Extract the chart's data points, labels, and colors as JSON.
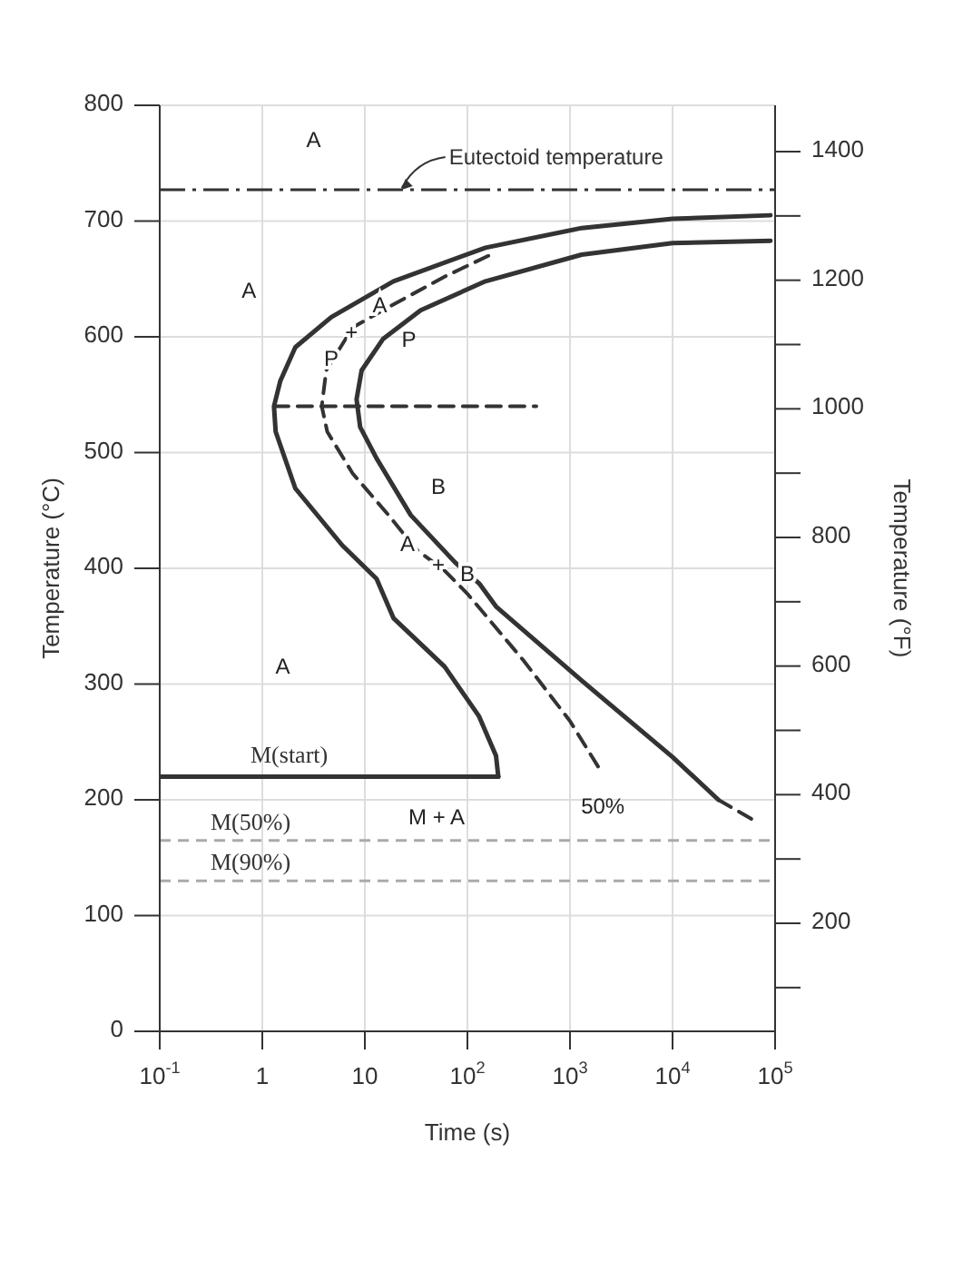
{
  "chart_data": {
    "type": "line",
    "xlabel": "Time (s)",
    "ylabel": "Temperature (°C)",
    "y2label": "Temperature (°F)",
    "log": "x",
    "grid": true,
    "marker": "none",
    "xlim": [
      0.1,
      100000
    ],
    "xticks": [
      {
        "value": 0.1,
        "label": "10$^{-1}$"
      },
      1,
      10,
      {
        "value": 100,
        "label": "10$^{2}$"
      },
      {
        "value": 1000,
        "label": "10$^{3}$"
      },
      {
        "value": 10000,
        "label": "10$^{4}$"
      },
      {
        "value": 100000,
        "label": "10$^{5}$"
      }
    ],
    "ylim": [
      0,
      800
    ],
    "yticks": [
      0,
      100,
      200,
      300,
      400,
      500,
      600,
      700,
      800
    ],
    "y2lim": [
      32,
      1472
    ],
    "y2ticks": [
      {
        "value": 100,
        "label": null
      },
      200,
      {
        "value": 300,
        "label": null
      },
      400,
      {
        "value": 500,
        "label": null
      },
      600,
      {
        "value": 700,
        "label": null
      },
      800,
      {
        "value": 900,
        "label": null
      },
      1000,
      {
        "value": 1100,
        "label": null
      },
      1200,
      {
        "value": 1300,
        "label": null
      },
      1400
    ],
    "series": [
      {
        "color": "#333333",
        "line_style": "solid",
        "x": [
          90000,
          10000,
          1300,
          150,
          19,
          4.7,
          2.1,
          1.5,
          1.3,
          1.35,
          2.1,
          6,
          13,
          19,
          60,
          130,
          190,
          200
        ],
        "values": [
          705,
          702,
          694,
          677,
          648,
          617,
          591,
          562,
          540,
          518,
          469,
          420,
          391,
          357,
          315,
          272,
          238,
          220
        ]
      },
      {
        "color": "#333333",
        "line_style": "solid",
        "x": [
          90000,
          10000,
          1300,
          150,
          35,
          15,
          9.3,
          8.3,
          9,
          13,
          28,
          76,
          130,
          190,
          1300,
          10000,
          28000
        ],
        "values": [
          683,
          681,
          671,
          648,
          623,
          598,
          571,
          546,
          522,
          495,
          446,
          405,
          387,
          367,
          303,
          237,
          200
        ]
      },
      {
        "color": "#333333",
        "line_style": "dashed",
        "x": [
          28000,
          60000
        ],
        "values": [
          200,
          183
        ]
      },
      {
        "color": "#333333",
        "line_style": "dashed",
        "x": [
          160,
          60,
          15,
          7.6,
          4.2,
          3.8,
          4.3,
          7.6,
          17,
          32,
          60,
          100,
          355,
          1000,
          1900
        ],
        "values": [
          670,
          652,
          623,
          608,
          571,
          540,
          518,
          482,
          446,
          416,
          398,
          378,
          320,
          268,
          228
        ]
      },
      {
        "color": "#333333",
        "line_style": "dashed",
        "x": [
          1.3,
          470
        ],
        "values": [
          540,
          540
        ]
      },
      {
        "name": "M(start)",
        "color": "#333333",
        "line_style": "solid",
        "x": [
          0.1,
          200
        ],
        "values": [
          220,
          220
        ]
      }
    ],
    "ref_lines": [
      {
        "axis": "y",
        "value": 727,
        "label": "Eutectoid temperature",
        "color": "#333333",
        "line_style": "dashed"
      },
      {
        "axis": "y",
        "value": 165,
        "label": "M(50%)",
        "color": "#aaaaaa",
        "line_style": "dashed"
      },
      {
        "axis": "y",
        "value": 130,
        "label": "M(90%)",
        "color": "#aaaaaa",
        "line_style": "dashed"
      }
    ],
    "annotations": [
      "A",
      "A",
      "A",
      "P",
      "B",
      "M + A",
      "50%",
      {
        "text": "P",
        "x": 4.7,
        "y": 580
      },
      {
        "text": "+",
        "x": 7.4,
        "y": 603
      },
      {
        "text": "A",
        "x": 14,
        "y": 626
      },
      {
        "text": "A",
        "x": 26,
        "y": 420
      },
      {
        "text": "+",
        "x": 52,
        "y": 402
      },
      {
        "text": "B",
        "x": 100,
        "y": 394
      }
    ]
  }
}
